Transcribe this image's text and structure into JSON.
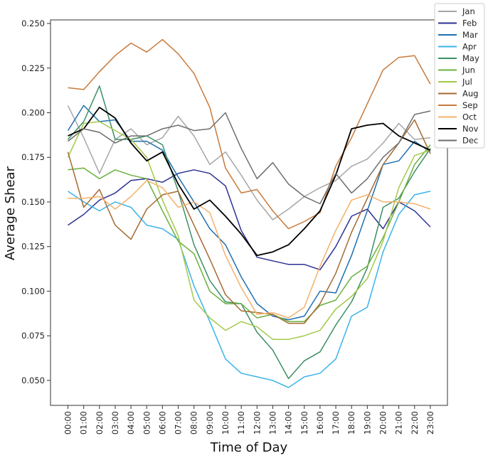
{
  "chart_data": {
    "type": "line",
    "title": "",
    "xlabel": "Time of Day",
    "ylabel": "Average Shear",
    "ylim": [
      0.036,
      0.252
    ],
    "yticks": [
      0.05,
      0.075,
      0.1,
      0.125,
      0.15,
      0.175,
      0.2,
      0.225,
      0.25
    ],
    "ytick_labels": [
      "0.050",
      "0.075",
      "0.100",
      "0.125",
      "0.150",
      "0.175",
      "0.200",
      "0.225",
      "0.250"
    ],
    "grid": false,
    "legend_position": "top-right",
    "categories": [
      "00:00",
      "01:00",
      "02:00",
      "03:00",
      "04:00",
      "05:00",
      "06:00",
      "07:00",
      "08:00",
      "09:00",
      "10:00",
      "11:00",
      "12:00",
      "13:00",
      "14:00",
      "15:00",
      "16:00",
      "17:00",
      "18:00",
      "19:00",
      "20:00",
      "21:00",
      "22:00",
      "23:00"
    ],
    "series": [
      {
        "name": "Jan",
        "color": "#a6a6a6",
        "values": [
          0.204,
          0.186,
          0.166,
          0.185,
          0.191,
          0.182,
          0.186,
          0.198,
          0.187,
          0.171,
          0.178,
          0.165,
          0.151,
          0.14,
          0.146,
          0.153,
          0.158,
          0.162,
          0.17,
          0.174,
          0.183,
          0.194,
          0.185,
          0.186
        ]
      },
      {
        "name": "Feb",
        "color": "#2e3192",
        "values": [
          0.137,
          0.143,
          0.151,
          0.155,
          0.162,
          0.163,
          0.161,
          0.166,
          0.168,
          0.166,
          0.159,
          0.134,
          0.119,
          0.117,
          0.115,
          0.115,
          0.112,
          0.125,
          0.142,
          0.146,
          0.135,
          0.15,
          0.145,
          0.136
        ]
      },
      {
        "name": "Mar",
        "color": "#1f6fb0",
        "values": [
          0.19,
          0.204,
          0.195,
          0.196,
          0.184,
          0.184,
          0.179,
          0.164,
          0.15,
          0.135,
          0.126,
          0.108,
          0.093,
          0.086,
          0.084,
          0.086,
          0.1,
          0.099,
          0.12,
          0.145,
          0.171,
          0.173,
          0.184,
          0.178
        ]
      },
      {
        "name": "Apr",
        "color": "#3bb3ea",
        "values": [
          0.156,
          0.15,
          0.145,
          0.15,
          0.147,
          0.137,
          0.135,
          0.129,
          0.103,
          0.083,
          0.062,
          0.054,
          0.052,
          0.05,
          0.046,
          0.052,
          0.054,
          0.062,
          0.086,
          0.091,
          0.122,
          0.143,
          0.154,
          0.156
        ]
      },
      {
        "name": "May",
        "color": "#3c8f66",
        "values": [
          0.185,
          0.195,
          0.215,
          0.185,
          0.185,
          0.187,
          0.182,
          0.156,
          0.126,
          0.106,
          0.094,
          0.093,
          0.077,
          0.067,
          0.051,
          0.061,
          0.066,
          0.081,
          0.094,
          0.113,
          0.147,
          0.152,
          0.167,
          0.18
        ]
      },
      {
        "name": "Jun",
        "color": "#6ab13f",
        "values": [
          0.168,
          0.169,
          0.163,
          0.168,
          0.165,
          0.163,
          0.145,
          0.128,
          0.121,
          0.1,
          0.093,
          0.093,
          0.085,
          0.087,
          0.083,
          0.083,
          0.092,
          0.095,
          0.108,
          0.114,
          0.13,
          0.15,
          0.171,
          0.182
        ]
      },
      {
        "name": "Jul",
        "color": "#a4c84a",
        "values": [
          0.175,
          0.194,
          0.195,
          0.19,
          0.185,
          0.175,
          0.151,
          0.131,
          0.095,
          0.085,
          0.078,
          0.083,
          0.08,
          0.073,
          0.073,
          0.075,
          0.078,
          0.09,
          0.097,
          0.107,
          0.128,
          0.158,
          0.176,
          0.179
        ]
      },
      {
        "name": "Aug",
        "color": "#a56a32",
        "values": [
          0.178,
          0.147,
          0.157,
          0.137,
          0.129,
          0.146,
          0.154,
          0.156,
          0.137,
          0.118,
          0.098,
          0.089,
          0.088,
          0.087,
          0.082,
          0.082,
          0.093,
          0.11,
          0.133,
          0.152,
          0.171,
          0.183,
          0.196,
          0.177
        ]
      },
      {
        "name": "Sep",
        "color": "#c87a3c",
        "values": [
          0.214,
          0.213,
          0.223,
          0.232,
          0.239,
          0.234,
          0.241,
          0.233,
          0.222,
          0.203,
          0.169,
          0.155,
          0.157,
          0.145,
          0.135,
          0.139,
          0.144,
          0.17,
          0.186,
          0.205,
          0.224,
          0.231,
          0.232,
          0.216
        ]
      },
      {
        "name": "Oct",
        "color": "#f5b16a",
        "values": [
          0.152,
          0.152,
          0.153,
          0.146,
          0.153,
          0.162,
          0.158,
          0.147,
          0.15,
          0.144,
          0.12,
          0.102,
          0.087,
          0.088,
          0.085,
          0.091,
          0.114,
          0.134,
          0.151,
          0.154,
          0.15,
          0.15,
          0.149,
          0.146
        ]
      },
      {
        "name": "Nov",
        "color": "#000000",
        "values": [
          0.187,
          0.191,
          0.203,
          0.197,
          0.183,
          0.173,
          0.178,
          0.16,
          0.146,
          0.151,
          0.142,
          0.132,
          0.12,
          0.122,
          0.126,
          0.135,
          0.145,
          0.165,
          0.191,
          0.193,
          0.194,
          0.187,
          0.183,
          0.179
        ]
      },
      {
        "name": "Dec",
        "color": "#6e6e6e",
        "values": [
          0.184,
          0.191,
          0.189,
          0.183,
          0.187,
          0.187,
          0.191,
          0.193,
          0.19,
          0.191,
          0.2,
          0.18,
          0.163,
          0.172,
          0.16,
          0.153,
          0.149,
          0.166,
          0.155,
          0.163,
          0.175,
          0.183,
          0.199,
          0.201
        ]
      }
    ]
  }
}
